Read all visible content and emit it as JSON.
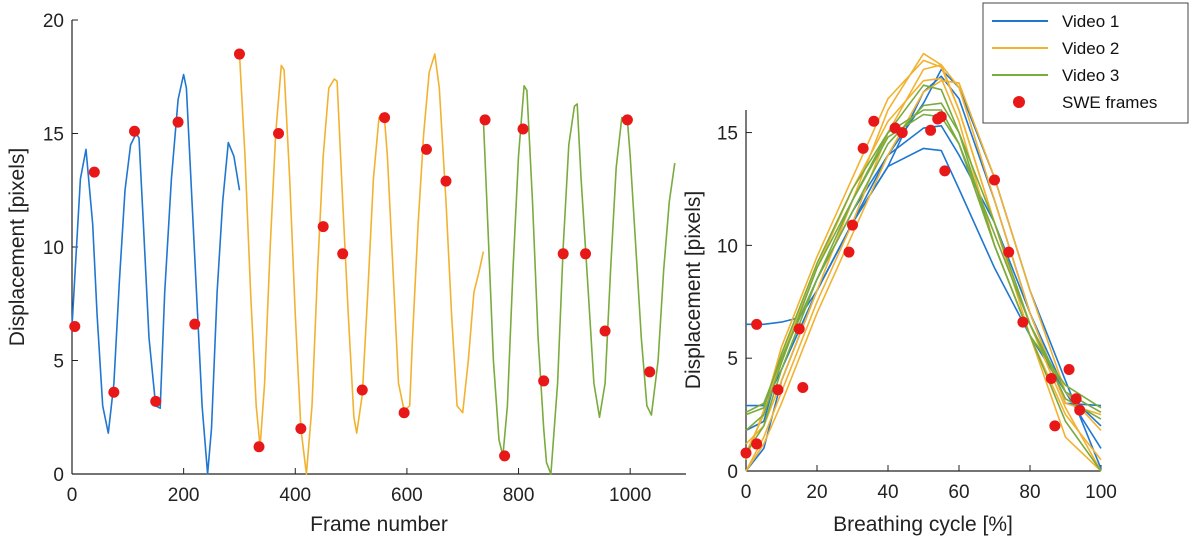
{
  "chart_data": [
    {
      "type": "line",
      "xlabel": "Frame number",
      "ylabel": "Displacement [pixels]",
      "xlim": [
        0,
        1100
      ],
      "ylim": [
        0,
        20
      ],
      "xticks": [
        "0",
        "200",
        "400",
        "600",
        "800",
        "1000"
      ],
      "yticks": [
        "0",
        "5",
        "10",
        "15",
        "20"
      ],
      "series": [
        {
          "name": "Video 1",
          "color": "#1f77d0",
          "x": [
            0,
            8,
            15,
            25,
            37,
            45,
            55,
            65,
            75,
            85,
            95,
            105,
            115,
            120,
            128,
            138,
            150,
            158,
            166,
            178,
            190,
            200,
            205,
            213,
            223,
            233,
            243,
            250,
            260,
            270,
            280,
            290,
            300
          ],
          "y": [
            6.5,
            10,
            13,
            14.3,
            11,
            7,
            3,
            1.8,
            4,
            8.5,
            12.5,
            14.5,
            15,
            14.8,
            11,
            6,
            3,
            2.9,
            8,
            13,
            16.5,
            17.6,
            17,
            13,
            8,
            3,
            0,
            2,
            8,
            12,
            14.6,
            14,
            12.5
          ]
        },
        {
          "name": "Video 2",
          "color": "#f2b230",
          "x": [
            300,
            310,
            320,
            330,
            337,
            345,
            355,
            365,
            375,
            380,
            390,
            400,
            410,
            420,
            430,
            440,
            450,
            460,
            470,
            475,
            485,
            495,
            505,
            510,
            520,
            530,
            540,
            550,
            560,
            565,
            575,
            585,
            595,
            605,
            610,
            620,
            630,
            640,
            650,
            658,
            670,
            680,
            690,
            700,
            710,
            720,
            730,
            737
          ],
          "y": [
            18.5,
            14,
            8,
            3,
            1.2,
            4,
            10,
            15,
            18,
            17.8,
            13,
            7,
            2,
            0,
            3,
            9,
            14,
            17,
            17.4,
            17.3,
            12,
            7,
            2.5,
            1.8,
            3.5,
            8,
            13,
            15.7,
            15.6,
            14,
            9,
            4,
            2.8,
            3,
            6,
            11,
            15,
            17.7,
            18.5,
            17,
            12,
            7,
            3,
            2.7,
            5,
            8,
            9,
            9.8
          ]
        },
        {
          "name": "Video 3",
          "color": "#7aab3d",
          "x": [
            737,
            745,
            755,
            765,
            772,
            780,
            790,
            800,
            810,
            815,
            825,
            835,
            845,
            850,
            858,
            870,
            880,
            890,
            900,
            905,
            912,
            925,
            935,
            945,
            955,
            965,
            975,
            985,
            995,
            1000,
            1010,
            1020,
            1030,
            1038,
            1050,
            1060,
            1070,
            1080
          ],
          "y": [
            15.6,
            11,
            5,
            1.5,
            0.8,
            3,
            9,
            14,
            17.1,
            16.9,
            12,
            6,
            2,
            0.5,
            0,
            4,
            10,
            14.5,
            16.2,
            16.3,
            13,
            8,
            4,
            2.5,
            4,
            9,
            13.5,
            15.7,
            15.6,
            14,
            10,
            6,
            3,
            2.6,
            5,
            9,
            12,
            13.7
          ]
        }
      ],
      "swe_frames": {
        "name": "SWE frames",
        "color": "#e81818",
        "x": [
          5,
          40,
          75,
          112,
          150,
          190,
          220,
          300,
          335,
          370,
          410,
          450,
          485,
          520,
          560,
          595,
          635,
          670,
          740,
          775,
          808,
          845,
          880,
          920,
          955,
          995,
          1035
        ],
        "y": [
          6.5,
          13.3,
          3.6,
          15.1,
          3.2,
          15.5,
          6.6,
          18.5,
          1.2,
          15.0,
          2.0,
          10.9,
          9.7,
          3.7,
          15.7,
          2.7,
          14.3,
          12.9,
          15.6,
          0.8,
          15.2,
          4.1,
          9.7,
          9.7,
          6.3,
          15.6,
          4.5
        ]
      }
    },
    {
      "type": "line",
      "xlabel": "Breathing cycle [%]",
      "ylabel": "Displacement [pixels]",
      "xlim": [
        0,
        100
      ],
      "ylim": [
        0,
        16
      ],
      "xticks": [
        "0",
        "20",
        "40",
        "60",
        "80",
        "100"
      ],
      "yticks": [
        "0",
        "5",
        "10",
        "15"
      ],
      "legend": {
        "position": "top-right",
        "entries": [
          "Video 1",
          "Video 2",
          "Video 3",
          "SWE frames"
        ]
      },
      "series": [
        {
          "name": "Video 1",
          "color": "#1f77d0",
          "curves": [
            {
              "x": [
                0,
                5,
                10,
                15,
                20,
                30,
                40,
                50,
                55,
                60,
                70,
                80,
                90,
                100
              ],
              "y": [
                6.5,
                6.5,
                6.6,
                6.8,
                8,
                11,
                13.5,
                14.3,
                14.2,
                12.5,
                9,
                6,
                3.5,
                2.0
              ]
            },
            {
              "x": [
                0,
                5,
                10,
                20,
                30,
                40,
                50,
                55,
                60,
                70,
                80,
                90,
                100
              ],
              "y": [
                2.9,
                2.9,
                4.5,
                8,
                11,
                14,
                16.3,
                17.8,
                17,
                13,
                8,
                4,
                0.1
              ]
            },
            {
              "x": [
                0,
                5,
                10,
                20,
                30,
                40,
                50,
                55,
                60,
                70,
                80,
                90,
                100
              ],
              "y": [
                1.8,
                2.2,
                5,
                8.5,
                11.5,
                14,
                15.2,
                15.3,
                14,
                11,
                7,
                3,
                2.9
              ]
            },
            {
              "x": [
                0,
                5,
                10,
                20,
                30,
                40,
                50,
                55,
                60,
                70,
                80,
                90,
                100
              ],
              "y": [
                0,
                1,
                4,
                8,
                11,
                13.5,
                16.8,
                17.5,
                16.5,
                12,
                7,
                3.5,
                1.0
              ]
            }
          ]
        },
        {
          "name": "Video 2",
          "color": "#f2b230",
          "curves": [
            {
              "x": [
                0,
                5,
                10,
                20,
                30,
                40,
                50,
                55,
                60,
                70,
                80,
                90,
                100
              ],
              "y": [
                1.2,
                2,
                4,
                8,
                12,
                16,
                18.5,
                18,
                16,
                11,
                6,
                1.5,
                0
              ]
            },
            {
              "x": [
                0,
                5,
                10,
                20,
                30,
                40,
                50,
                55,
                60,
                70,
                80,
                90,
                100
              ],
              "y": [
                0,
                1.5,
                3.5,
                7.5,
                11,
                15,
                17.8,
                18,
                17,
                12,
                7,
                3,
                2.5
              ]
            },
            {
              "x": [
                0,
                5,
                10,
                20,
                30,
                40,
                50,
                55,
                60,
                70,
                80,
                90,
                100
              ],
              "y": [
                0.8,
                2.5,
                5,
                9,
                12.5,
                15.5,
                17.3,
                17.4,
                15.5,
                10,
                6,
                2.5,
                0.5
              ]
            },
            {
              "x": [
                0,
                5,
                10,
                20,
                30,
                40,
                50,
                55,
                60,
                70,
                80,
                90,
                100
              ],
              "y": [
                0,
                1.2,
                3,
                7,
                10.5,
                14,
                16.8,
                17.3,
                17.2,
                13,
                8,
                3.5,
                1.8
              ]
            },
            {
              "x": [
                0,
                5,
                10,
                20,
                30,
                40,
                50,
                55,
                60,
                70,
                80,
                90,
                100
              ],
              "y": [
                0.5,
                2.7,
                5.5,
                9.5,
                13,
                16.5,
                18.2,
                17.9,
                16,
                11,
                6.5,
                2.8,
                0
              ]
            }
          ]
        },
        {
          "name": "Video 3",
          "color": "#7aab3d",
          "curves": [
            {
              "x": [
                0,
                5,
                10,
                20,
                30,
                40,
                50,
                55,
                60,
                70,
                80,
                90,
                100
              ],
              "y": [
                2.6,
                3,
                5,
                8.5,
                11.5,
                14.5,
                16.2,
                16.3,
                15,
                11,
                6.5,
                3.5,
                2.6
              ]
            },
            {
              "x": [
                0,
                5,
                10,
                20,
                30,
                40,
                50,
                55,
                60,
                70,
                80,
                90,
                100
              ],
              "y": [
                0.8,
                2,
                4.5,
                8.5,
                12,
                15,
                17.1,
                16.9,
                15,
                10,
                6,
                2.2,
                0
              ]
            },
            {
              "x": [
                0,
                5,
                10,
                20,
                30,
                40,
                50,
                55,
                60,
                70,
                80,
                90,
                100
              ],
              "y": [
                1.8,
                2.5,
                4.8,
                9,
                12,
                14.8,
                15.8,
                15.7,
                14.5,
                10.5,
                6.5,
                3.2,
                2.3
              ]
            },
            {
              "x": [
                0,
                5,
                10,
                20,
                30,
                40,
                50,
                55,
                60,
                70,
                80,
                90,
                100
              ],
              "y": [
                2.5,
                2.8,
                5.2,
                9.2,
                12.5,
                15,
                16,
                16,
                14.5,
                10,
                6,
                3.8,
                2.8
              ]
            }
          ]
        }
      ],
      "swe_frames": {
        "name": "SWE frames",
        "color": "#e81818",
        "x": [
          0,
          3,
          3,
          9,
          15,
          16,
          29,
          30,
          33,
          36,
          42,
          44,
          52,
          54,
          55,
          56,
          70,
          74,
          78,
          86,
          87,
          91,
          93,
          94
        ],
        "y": [
          0.8,
          6.5,
          1.2,
          3.6,
          6.3,
          3.7,
          9.7,
          10.9,
          14.3,
          15.5,
          15.2,
          15.0,
          15.1,
          15.6,
          15.7,
          13.3,
          12.9,
          9.7,
          6.6,
          4.1,
          2.0,
          4.5,
          3.2,
          2.7
        ]
      }
    }
  ]
}
